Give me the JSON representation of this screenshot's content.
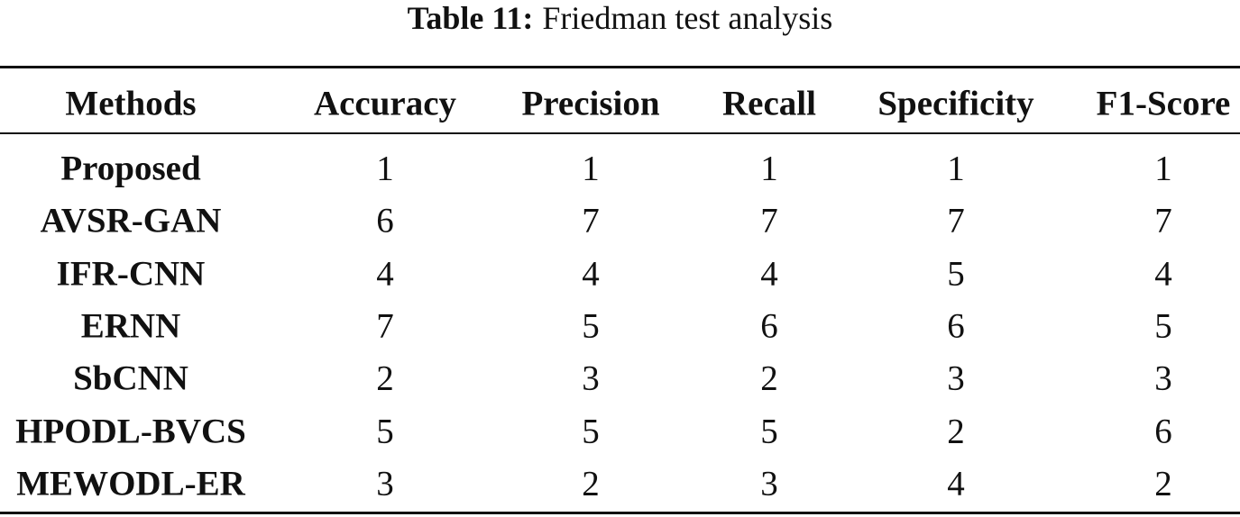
{
  "caption": {
    "label": "Table 11:",
    "text": "Friedman test analysis"
  },
  "table": {
    "columns": [
      "Methods",
      "Accuracy",
      "Precision",
      "Recall",
      "Specificity",
      "F1-Score"
    ],
    "rows": [
      [
        "Proposed",
        1,
        1,
        1,
        1,
        1
      ],
      [
        "AVSR-GAN",
        6,
        7,
        7,
        7,
        7
      ],
      [
        "IFR-CNN",
        4,
        4,
        4,
        5,
        4
      ],
      [
        "ERNN",
        7,
        5,
        6,
        6,
        5
      ],
      [
        "SbCNN",
        2,
        3,
        2,
        3,
        3
      ],
      [
        "HPODL-BVCS",
        5,
        5,
        5,
        2,
        6
      ],
      [
        "MEWODL-ER",
        3,
        2,
        3,
        4,
        2
      ]
    ]
  }
}
